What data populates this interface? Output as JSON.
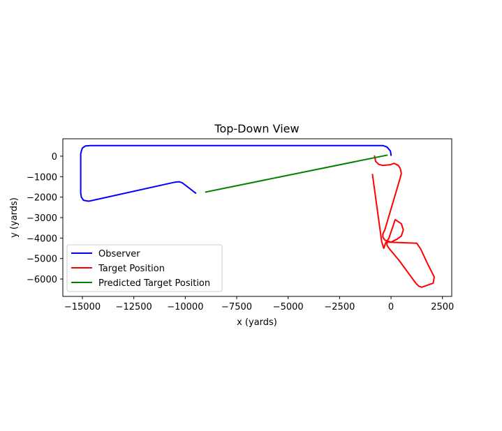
{
  "chart_data": {
    "type": "line",
    "title": "Top-Down View",
    "xlabel": "x (yards)",
    "ylabel": "y (yards)",
    "xlim": [
      -15950,
      2950
    ],
    "ylim": [
      -6850,
      850
    ],
    "xticks": [
      -15000,
      -12500,
      -10000,
      -7500,
      -5000,
      -2500,
      0,
      2500
    ],
    "xtick_labels": [
      "−15000",
      "−12500",
      "−10000",
      "−7500",
      "−5000",
      "−2500",
      "0",
      "2500"
    ],
    "yticks": [
      0,
      -1000,
      -2000,
      -3000,
      -4000,
      -5000,
      -6000
    ],
    "ytick_labels": [
      "0",
      "−1000",
      "−2000",
      "−3000",
      "−4000",
      "−5000",
      "−6000"
    ],
    "grid": false,
    "legend_position": "lower-left",
    "series": [
      {
        "name": "Observer",
        "color": "#0000ff",
        "x": [
          0,
          -30,
          -200,
          -400,
          -14600,
          -14850,
          -15000,
          -15050,
          -15080,
          -15080,
          -15050,
          -14950,
          -14700,
          -14550,
          -10500,
          -10300,
          -10150,
          -9950,
          -9500
        ],
        "y": [
          50,
          250,
          450,
          520,
          520,
          500,
          400,
          250,
          100,
          -1800,
          -2000,
          -2150,
          -2200,
          -2170,
          -1270,
          -1250,
          -1300,
          -1450,
          -1800
        ]
      },
      {
        "name": "Target Position",
        "color": "#ff0000",
        "x": [
          -800,
          -750,
          -600,
          -400,
          -200,
          -50,
          150,
          350,
          450,
          500,
          450,
          -300,
          -400,
          -400,
          -300,
          0,
          300,
          500,
          600,
          500,
          200,
          -100,
          -200,
          -200,
          -100,
          400,
          1200,
          1350,
          1500,
          2050,
          2100,
          2000,
          1750,
          1450,
          1250,
          -100,
          -250,
          -300,
          -350,
          -450,
          -900
        ],
        "y": [
          0,
          -250,
          -400,
          -450,
          -430,
          -420,
          -350,
          -450,
          -600,
          -850,
          -1050,
          -3600,
          -3800,
          -3950,
          -4100,
          -4200,
          -4050,
          -3900,
          -3600,
          -3300,
          -3100,
          -4000,
          -4150,
          -4350,
          -4500,
          -5100,
          -6200,
          -6350,
          -6400,
          -6200,
          -5900,
          -5700,
          -5200,
          -4550,
          -4250,
          -4200,
          -4200,
          -4350,
          -4500,
          -4200,
          -900
        ]
      },
      {
        "name": "Predicted Target Position",
        "color": "#008000",
        "x": [
          -9000,
          -200
        ],
        "y": [
          -1750,
          50
        ]
      }
    ]
  }
}
